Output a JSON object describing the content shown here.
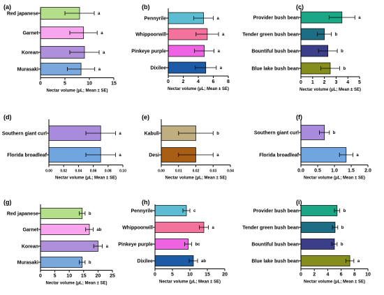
{
  "xlabel": "Nectar volume (μL; Mean ± SE)",
  "chart_data": [
    {
      "type": "bar",
      "orientation": "horizontal",
      "panel": "(a)",
      "categories": [
        "Red japanese",
        "Garnet",
        "Korean",
        "Murasaki"
      ],
      "values": [
        8.0,
        8.8,
        9.0,
        8.3
      ],
      "errors": [
        3.0,
        2.8,
        3.0,
        2.8
      ],
      "letters": [
        "a",
        "a",
        "a",
        "a"
      ],
      "colors": [
        "#b4de8a",
        "#f7a6ee",
        "#ad8fda",
        "#79a8dc"
      ],
      "xlim": [
        0,
        15
      ],
      "xticks": [
        "0",
        "5",
        "10",
        "15"
      ],
      "tickvals": [
        0,
        5,
        10,
        15
      ],
      "xlabel": "Nectar volume (μL; Mean ± SE)"
    },
    {
      "type": "bar",
      "orientation": "horizontal",
      "panel": "(b)",
      "categories": [
        "Pennyrile",
        "Whippoorwill",
        "Pinkeye purple",
        "Dixilee"
      ],
      "values": [
        4.7,
        5.2,
        4.8,
        5.0
      ],
      "errors": [
        1.3,
        1.5,
        1.3,
        1.4
      ],
      "letters": [
        "a",
        "a",
        "a",
        "a"
      ],
      "colors": [
        "#5bbcd2",
        "#f4739d",
        "#f062e4",
        "#1e5ba6"
      ],
      "xlim": [
        0,
        8
      ],
      "xticks": [
        "0",
        "2",
        "4",
        "6",
        "8"
      ],
      "tickvals": [
        0,
        2,
        4,
        6,
        8
      ],
      "xlabel": "Nectar volume (μL; Mean ± SE)"
    },
    {
      "type": "bar",
      "orientation": "horizontal",
      "panel": "(c)",
      "categories": [
        "Provider bush bean",
        "Tender green bush bean",
        "Bountiful bush bean",
        "Blue lake bush bean"
      ],
      "values": [
        3.5,
        2.0,
        2.3,
        2.5
      ],
      "errors": [
        1.1,
        0.6,
        0.8,
        0.8
      ],
      "letters": [
        "a",
        "b",
        "b",
        "b"
      ],
      "colors": [
        "#1aa786",
        "#1c6e85",
        "#3b3f8a",
        "#858d1d"
      ],
      "xlim": [
        0,
        5
      ],
      "xticks": [
        "0",
        "1",
        "2",
        "3",
        "4",
        "5"
      ],
      "tickvals": [
        0,
        1,
        2,
        3,
        4,
        5
      ],
      "xlabel": "Nectar volume (μL; Mean ± SE)"
    },
    {
      "type": "bar",
      "orientation": "horizontal",
      "panel": "(d)",
      "categories": [
        "Southern giant curl",
        "Florida broadleaf"
      ],
      "values": [
        0.07,
        0.07
      ],
      "errors": [
        0.02,
        0.02
      ],
      "letters": [
        "a",
        "a"
      ],
      "colors": [
        "#a98bde",
        "#6fa6e0"
      ],
      "xlim": [
        0,
        0.1
      ],
      "xticks": [
        "0.00",
        "0.02",
        "0.04",
        "0.06",
        "0.08",
        "0.10"
      ],
      "tickvals": [
        0,
        0.02,
        0.04,
        0.06,
        0.08,
        0.1
      ],
      "xlabel": "Nectar volume (μL; Mean ± SE)"
    },
    {
      "type": "bar",
      "orientation": "horizontal",
      "panel": "(e)",
      "categories": [
        "Kabuli",
        "Desi"
      ],
      "values": [
        0.02,
        0.02
      ],
      "errors": [
        0.01,
        0.01
      ],
      "letters": [
        "b",
        "a"
      ],
      "colors": [
        "#bfae80",
        "#a95e16"
      ],
      "xlim": [
        0,
        0.04
      ],
      "xticks": [
        "0.00",
        "0.01",
        "0.02",
        "0.03",
        "0.04"
      ],
      "tickvals": [
        0,
        0.01,
        0.02,
        0.03,
        0.04
      ],
      "xlabel": "Nectar volume (μL; Mean ± SE)"
    },
    {
      "type": "bar",
      "orientation": "horizontal",
      "panel": "(f)",
      "categories": [
        "Southern giant curl",
        "Florida broadleaf"
      ],
      "values": [
        0.7,
        1.35
      ],
      "errors": [
        0.15,
        0.2
      ],
      "letters": [
        "b",
        "a"
      ],
      "colors": [
        "#a98bde",
        "#6fa6e0"
      ],
      "xlim": [
        0,
        2
      ],
      "xticks": [
        "0.0",
        "0.5",
        "1.0",
        "1.5",
        "2.0"
      ],
      "tickvals": [
        0,
        0.5,
        1,
        1.5,
        2
      ],
      "xlabel": "Nectar volume (μL; Mean ± SE)"
    },
    {
      "type": "bar",
      "orientation": "horizontal",
      "panel": "(g)",
      "categories": [
        "Red japanese",
        "Garnet",
        "Korean",
        "Murasaki"
      ],
      "values": [
        14.5,
        17.0,
        20.0,
        14.5
      ],
      "errors": [
        1.0,
        1.3,
        1.5,
        1.0
      ],
      "letters": [
        "b",
        "ab",
        "a",
        "b"
      ],
      "colors": [
        "#b4de8a",
        "#f7a6ee",
        "#ad8fda",
        "#79a8dc"
      ],
      "xlim": [
        0,
        25
      ],
      "xticks": [
        "0",
        "5",
        "10",
        "15",
        "20",
        "25"
      ],
      "tickvals": [
        0,
        5,
        10,
        15,
        20,
        25
      ],
      "xlabel": "Nectar volume (μL; Mean ± SE)"
    },
    {
      "type": "bar",
      "orientation": "horizontal",
      "panel": "(h)",
      "categories": [
        "Pennyrile",
        "Whippoorwill",
        "Pinkeye purple",
        "Dixilee"
      ],
      "values": [
        9.0,
        14.0,
        9.5,
        11.0
      ],
      "errors": [
        1.0,
        1.3,
        1.0,
        1.2
      ],
      "letters": [
        "c",
        "a",
        "bc",
        "ab"
      ],
      "colors": [
        "#5bbcd2",
        "#f4739d",
        "#f062e4",
        "#1e5ba6"
      ],
      "xlim": [
        0,
        20
      ],
      "xticks": [
        "0",
        "5",
        "10",
        "15",
        "20"
      ],
      "tickvals": [
        0,
        5,
        10,
        15,
        20
      ],
      "xlabel": "Nectar volume (μL; Mean ± SE)"
    },
    {
      "type": "bar",
      "orientation": "horizontal",
      "panel": "(i)",
      "categories": [
        "Provider bush bean",
        "Tender green bush bean",
        "Bountiful bush bean",
        "Blue lake bush bean"
      ],
      "values": [
        5.4,
        5.1,
        5.0,
        7.3
      ],
      "errors": [
        0.4,
        0.4,
        0.4,
        0.6
      ],
      "letters": [
        "b",
        "b",
        "b",
        "a"
      ],
      "colors": [
        "#1aa786",
        "#1c6e85",
        "#3b3f8a",
        "#858d1d"
      ],
      "xlim": [
        0,
        10
      ],
      "xticks": [
        "0",
        "2",
        "4",
        "6",
        "8",
        "10"
      ],
      "tickvals": [
        0,
        2,
        4,
        6,
        8,
        10
      ],
      "xlabel": "Nectar volume (μL; Mean ± SE)"
    }
  ]
}
